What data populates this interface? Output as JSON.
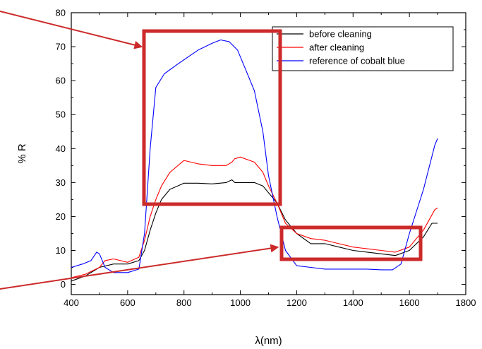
{
  "chart_data": {
    "type": "line",
    "xlabel": "λ(nm)",
    "ylabel": "% R",
    "xlim": [
      400,
      1800
    ],
    "ylim": [
      -3,
      80
    ],
    "xticks": [
      400,
      600,
      800,
      1000,
      1200,
      1400,
      1600,
      1800
    ],
    "yticks": [
      0,
      10,
      20,
      30,
      40,
      50,
      60,
      70,
      80
    ],
    "grid": false,
    "legend_position": "top-right",
    "series": [
      {
        "name": "before cleaning",
        "color": "#000000",
        "points": [
          [
            400,
            1.0
          ],
          [
            450,
            2.5
          ],
          [
            500,
            5.0
          ],
          [
            550,
            6.0
          ],
          [
            600,
            6.0
          ],
          [
            640,
            7.0
          ],
          [
            660,
            10.0
          ],
          [
            680,
            16.0
          ],
          [
            700,
            21.0
          ],
          [
            720,
            25.0
          ],
          [
            750,
            28.0
          ],
          [
            800,
            29.8
          ],
          [
            850,
            29.8
          ],
          [
            900,
            29.6
          ],
          [
            950,
            30.0
          ],
          [
            970,
            30.8
          ],
          [
            980,
            30.0
          ],
          [
            1000,
            30.0
          ],
          [
            1050,
            30.0
          ],
          [
            1080,
            29.0
          ],
          [
            1100,
            27.0
          ],
          [
            1130,
            24.0
          ],
          [
            1160,
            19.0
          ],
          [
            1200,
            15.0
          ],
          [
            1250,
            12.0
          ],
          [
            1300,
            12.0
          ],
          [
            1350,
            11.0
          ],
          [
            1400,
            10.0
          ],
          [
            1450,
            9.5
          ],
          [
            1500,
            9.0
          ],
          [
            1550,
            8.5
          ],
          [
            1600,
            10.0
          ],
          [
            1650,
            14.0
          ],
          [
            1680,
            18.0
          ],
          [
            1700,
            18.0
          ]
        ]
      },
      {
        "name": "after cleaning",
        "color": "#ff0000",
        "points": [
          [
            400,
            2.0
          ],
          [
            450,
            3.0
          ],
          [
            500,
            5.0
          ],
          [
            520,
            7.0
          ],
          [
            550,
            7.5
          ],
          [
            600,
            6.5
          ],
          [
            640,
            8.0
          ],
          [
            660,
            13.0
          ],
          [
            680,
            20.0
          ],
          [
            700,
            25.0
          ],
          [
            720,
            29.0
          ],
          [
            750,
            33.0
          ],
          [
            800,
            36.5
          ],
          [
            850,
            35.5
          ],
          [
            900,
            35.0
          ],
          [
            950,
            35.0
          ],
          [
            970,
            36.0
          ],
          [
            980,
            37.0
          ],
          [
            1000,
            37.5
          ],
          [
            1050,
            36.0
          ],
          [
            1080,
            33.0
          ],
          [
            1100,
            29.0
          ],
          [
            1130,
            24.0
          ],
          [
            1160,
            18.0
          ],
          [
            1200,
            15.0
          ],
          [
            1250,
            13.5
          ],
          [
            1300,
            13.0
          ],
          [
            1350,
            12.0
          ],
          [
            1400,
            11.0
          ],
          [
            1450,
            10.5
          ],
          [
            1500,
            10.0
          ],
          [
            1550,
            9.5
          ],
          [
            1600,
            11.0
          ],
          [
            1650,
            16.0
          ],
          [
            1690,
            22.0
          ],
          [
            1700,
            22.5
          ]
        ]
      },
      {
        "name": "reference of cobalt blue",
        "color": "#0000ff",
        "points": [
          [
            400,
            5.0
          ],
          [
            440,
            6.0
          ],
          [
            470,
            7.0
          ],
          [
            490,
            9.5
          ],
          [
            500,
            9.0
          ],
          [
            520,
            5.0
          ],
          [
            550,
            3.5
          ],
          [
            600,
            3.5
          ],
          [
            640,
            4.5
          ],
          [
            660,
            15.0
          ],
          [
            680,
            40.0
          ],
          [
            700,
            58.0
          ],
          [
            730,
            62.0
          ],
          [
            780,
            65.0
          ],
          [
            850,
            69.0
          ],
          [
            900,
            71.0
          ],
          [
            930,
            72.0
          ],
          [
            960,
            71.5
          ],
          [
            990,
            69.0
          ],
          [
            1020,
            63.0
          ],
          [
            1050,
            57.0
          ],
          [
            1080,
            45.0
          ],
          [
            1100,
            32.0
          ],
          [
            1130,
            20.0
          ],
          [
            1160,
            10.0
          ],
          [
            1200,
            5.5
          ],
          [
            1250,
            5.0
          ],
          [
            1300,
            4.5
          ],
          [
            1400,
            4.5
          ],
          [
            1450,
            4.5
          ],
          [
            1500,
            4.3
          ],
          [
            1540,
            4.3
          ],
          [
            1570,
            6.0
          ],
          [
            1600,
            15.0
          ],
          [
            1650,
            28.0
          ],
          [
            1690,
            41.0
          ],
          [
            1700,
            43.0
          ]
        ]
      }
    ]
  }
}
